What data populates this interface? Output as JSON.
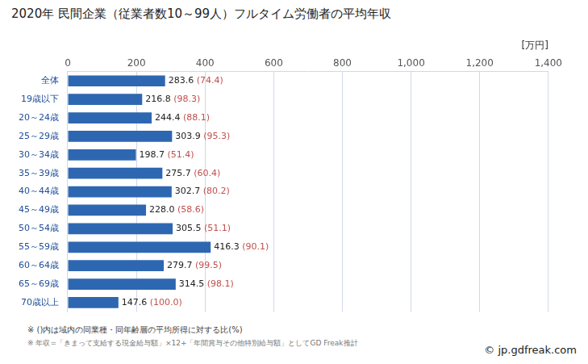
{
  "chart_data": {
    "type": "bar",
    "orientation": "horizontal",
    "title": "2020年 民間企業（従業者数10～99人）フルタイム労働者の平均年収",
    "xlabel": "[万円]",
    "categories": [
      "全体",
      "19歳以下",
      "20～24歳",
      "25～29歳",
      "30～34歳",
      "35～39歳",
      "40～44歳",
      "45～49歳",
      "50～54歳",
      "55～59歳",
      "60～64歳",
      "65～69歳",
      "70歳以上"
    ],
    "values": [
      283.6,
      216.8,
      244.4,
      303.9,
      198.7,
      275.7,
      302.7,
      228.0,
      305.5,
      416.3,
      279.7,
      314.5,
      147.6
    ],
    "value_labels": [
      "283.6",
      "216.8",
      "244.4",
      "303.9",
      "198.7",
      "275.7",
      "302.7",
      "228.0",
      "305.5",
      "416.3",
      "279.7",
      "314.5",
      "147.6"
    ],
    "ratio_labels": [
      "(74.4)",
      "(98.3)",
      "(88.1)",
      "(95.3)",
      "(51.4)",
      "(60.4)",
      "(80.2)",
      "(58.6)",
      "(51.1)",
      "(90.1)",
      "(99.5)",
      "(98.1)",
      "(100.0)"
    ],
    "color": "#2e67b1",
    "xlim": [
      0,
      1400
    ],
    "xticks": [
      0,
      200,
      400,
      600,
      800,
      1000,
      1200,
      1400
    ],
    "grid": true,
    "data_labels": true,
    "footnotes": [
      "※ ()内は域内の同業種・同年齢層の平均所得に対する比(%)",
      "※ 年収=「きまって支給する現金給与額」×12+「年間賞与その他特別給与額」としてGD Freak推計"
    ],
    "credit": "© jp.gdfreak.com"
  }
}
